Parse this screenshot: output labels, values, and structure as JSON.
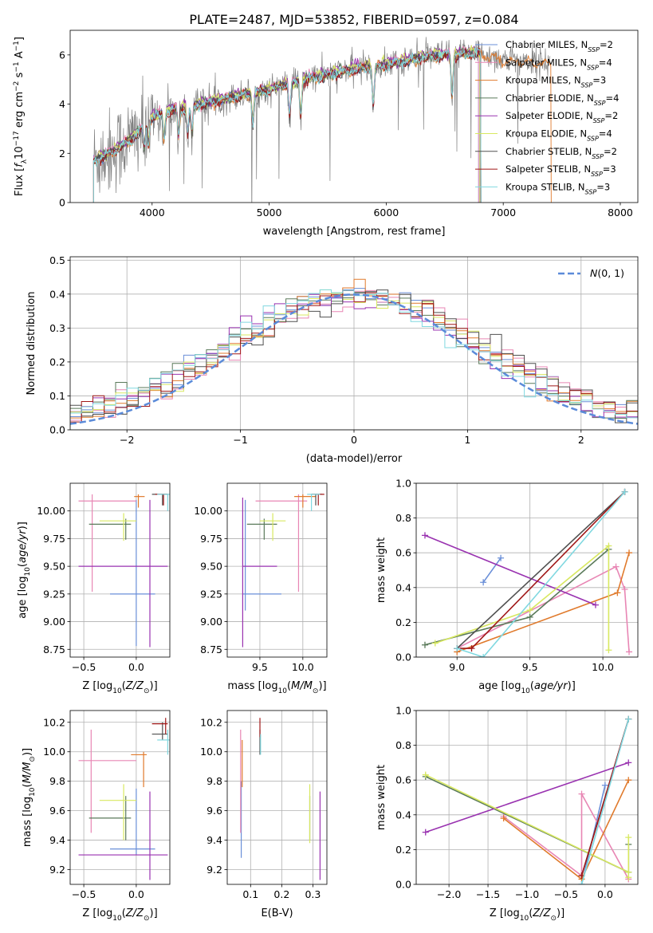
{
  "title": "PLATE=2487, MJD=53852, FIBERID=0597, z=0.084",
  "series_colors": [
    "#6a8fd8",
    "#e886b4",
    "#e07a2c",
    "#5a7a5a",
    "#9932b0",
    "#d8e860",
    "#505050",
    "#a01818",
    "#80d8e0"
  ],
  "legend_labels": [
    "Chabrier MILES, N_SSP=2",
    "Salpeter MILES, N_SSP=4",
    "Kroupa MILES, N_SSP=3",
    "Chabrier ELODIE, N_SSP=4",
    "Salpeter ELODIE, N_SSP=2",
    "Kroupa ELODIE, N_SSP=4",
    "Chabrier STELIB, N_SSP=2",
    "Salpeter STELIB, N_SSP=3",
    "Kroupa STELIB, N_SSP=3"
  ],
  "chart_data": [
    {
      "id": "spectrum",
      "type": "line",
      "xlabel": "wavelength [Angstrom, rest frame]",
      "ylabel": "Flux [f_λ 10^-17 erg cm^-2 s^-1 A^-1]",
      "xlim": [
        3300,
        8150
      ],
      "ylim": [
        0,
        7
      ],
      "xticks": [
        4000,
        5000,
        6000,
        7000,
        8000
      ],
      "yticks": [
        0,
        2,
        4,
        6
      ],
      "grid": false,
      "legend": "upper-right",
      "data_color": "#808080",
      "data_x_range": [
        3500,
        7400
      ],
      "continuum": [
        [
          3500,
          1.7
        ],
        [
          3700,
          2.2
        ],
        [
          3850,
          2.7
        ],
        [
          3950,
          3.2
        ],
        [
          4000,
          3.5
        ],
        [
          4200,
          3.8
        ],
        [
          4500,
          4.1
        ],
        [
          4800,
          4.4
        ],
        [
          5000,
          4.6
        ],
        [
          5200,
          4.9
        ],
        [
          5500,
          5.2
        ],
        [
          5800,
          5.5
        ],
        [
          6000,
          5.6
        ],
        [
          6300,
          5.9
        ],
        [
          6500,
          6.0
        ],
        [
          6800,
          6.1
        ],
        [
          7000,
          5.8
        ],
        [
          7400,
          5.7
        ]
      ],
      "absorption_lines": [
        3934,
        3969,
        4102,
        4226,
        4304,
        4340,
        4861,
        5175,
        5270,
        5890,
        6563
      ],
      "model_ranges": [
        [
          3500,
          6790
        ],
        [
          3500,
          6790
        ],
        [
          3500,
          7410
        ],
        [
          3500,
          6800
        ],
        [
          3500,
          6800
        ],
        [
          3500,
          6800
        ],
        [
          3500,
          6810
        ],
        [
          3500,
          6810
        ],
        [
          3500,
          6810
        ]
      ]
    },
    {
      "id": "residual-histogram",
      "type": "line",
      "xlabel": "(data-model)/error",
      "ylabel": "Normed distribution",
      "xlim": [
        -2.5,
        2.5
      ],
      "ylim": [
        0,
        0.51
      ],
      "xticks": [
        -2,
        -1,
        0,
        1,
        2
      ],
      "yticks": [
        0.0,
        0.1,
        0.2,
        0.3,
        0.4,
        0.5
      ],
      "grid": true,
      "legend": "upper-right",
      "legend_labels": [
        "N(0,1)"
      ],
      "reference_curve": {
        "name": "N(0,1)",
        "mean": 0,
        "sigma": 1,
        "color": "#5b8bd9",
        "style": "dashed"
      },
      "bin_width": 0.1
    },
    {
      "id": "age-vs-Z",
      "type": "scatter",
      "xlabel": "Z [log10(Z/Z_sun)]",
      "ylabel": "age [log10(age/yr)]",
      "xlim": [
        -0.63,
        0.32
      ],
      "ylim": [
        8.68,
        10.25
      ],
      "xticks": [
        -0.5,
        0.0
      ],
      "yticks": [
        8.75,
        9.0,
        9.25,
        9.5,
        9.75,
        10.0
      ],
      "grid": true,
      "errorbars": [
        {
          "s": 0,
          "x": 0.0,
          "y": 9.25,
          "xe": [
            -0.25,
            0.18
          ],
          "ye": [
            8.78,
            10.1
          ]
        },
        {
          "s": 1,
          "x": -0.42,
          "y": 10.09,
          "xe": [
            -0.55,
            0.0
          ],
          "ye": [
            9.27,
            10.15
          ]
        },
        {
          "s": 2,
          "x": 0.02,
          "y": 10.13,
          "xe": [
            -0.02,
            0.08
          ],
          "ye": [
            10.03,
            10.15
          ]
        },
        {
          "s": 3,
          "x": -0.1,
          "y": 9.88,
          "xe": [
            -0.45,
            -0.05
          ],
          "ye": [
            9.74,
            9.93
          ]
        },
        {
          "s": 4,
          "x": 0.13,
          "y": 9.5,
          "xe": [
            -0.55,
            0.3
          ],
          "ye": [
            8.77,
            10.1
          ]
        },
        {
          "s": 5,
          "x": -0.12,
          "y": 9.91,
          "xe": [
            -0.35,
            0.0
          ],
          "ye": [
            9.73,
            9.98
          ]
        },
        {
          "s": 6,
          "x": 0.25,
          "y": 10.15,
          "xe": [
            0.15,
            0.3
          ],
          "ye": [
            10.05,
            10.15
          ]
        },
        {
          "s": 7,
          "x": 0.26,
          "y": 10.15,
          "xe": [
            0.18,
            0.3
          ],
          "ye": [
            10.05,
            10.15
          ]
        },
        {
          "s": 8,
          "x": 0.3,
          "y": 10.15,
          "xe": [
            0.2,
            0.32
          ],
          "ye": [
            10.0,
            10.15
          ]
        }
      ]
    },
    {
      "id": "age-vs-mass",
      "type": "scatter",
      "xlabel": "mass [log10(M/M_sun)]",
      "ylabel": "",
      "xlim": [
        9.12,
        10.28
      ],
      "ylim": [
        8.68,
        10.25
      ],
      "xticks": [
        9.5,
        10.0
      ],
      "yticks": [
        8.75,
        9.0,
        9.25,
        9.5,
        9.75,
        10.0
      ],
      "grid": true,
      "errorbars": [
        {
          "s": 0,
          "x": 9.33,
          "y": 9.25,
          "xe": [
            9.3,
            9.75
          ],
          "ye": [
            9.1,
            10.1
          ]
        },
        {
          "s": 1,
          "x": 9.95,
          "y": 10.09,
          "xe": [
            9.45,
            10.05
          ],
          "ye": [
            9.27,
            10.15
          ]
        },
        {
          "s": 2,
          "x": 10.0,
          "y": 10.13,
          "xe": [
            9.9,
            10.15
          ],
          "ye": [
            10.03,
            10.15
          ]
        },
        {
          "s": 3,
          "x": 9.55,
          "y": 9.88,
          "xe": [
            9.35,
            9.7
          ],
          "ye": [
            9.74,
            9.93
          ]
        },
        {
          "s": 4,
          "x": 9.3,
          "y": 9.5,
          "xe": [
            9.3,
            9.7
          ],
          "ye": [
            8.77,
            10.12
          ]
        },
        {
          "s": 5,
          "x": 9.65,
          "y": 9.91,
          "xe": [
            9.5,
            9.8
          ],
          "ye": [
            9.73,
            9.98
          ]
        },
        {
          "s": 6,
          "x": 10.15,
          "y": 10.15,
          "xe": [
            10.1,
            10.22
          ],
          "ye": [
            10.05,
            10.15
          ]
        },
        {
          "s": 7,
          "x": 10.18,
          "y": 10.15,
          "xe": [
            10.1,
            10.25
          ],
          "ye": [
            10.05,
            10.15
          ]
        },
        {
          "s": 8,
          "x": 10.1,
          "y": 10.15,
          "xe": [
            10.05,
            10.2
          ],
          "ye": [
            10.0,
            10.15
          ]
        }
      ]
    },
    {
      "id": "massweight-vs-age",
      "type": "line",
      "xlabel": "age [log10(age/yr)]",
      "ylabel": "mass weight",
      "xlim": [
        8.72,
        10.24
      ],
      "ylim": [
        0,
        1
      ],
      "xticks": [
        9.0,
        9.5,
        10.0
      ],
      "yticks": [
        0.0,
        0.2,
        0.4,
        0.6,
        0.8,
        1.0
      ],
      "grid": true,
      "series": [
        {
          "s": 0,
          "x": [
            9.18,
            9.3
          ],
          "y": [
            0.43,
            0.57
          ]
        },
        {
          "s": 1,
          "x": [
            9.0,
            10.09,
            10.15,
            10.18
          ],
          "y": [
            0.05,
            0.52,
            0.39,
            0.03
          ]
        },
        {
          "s": 2,
          "x": [
            9.0,
            10.1,
            10.18
          ],
          "y": [
            0.03,
            0.37,
            0.6
          ]
        },
        {
          "s": 3,
          "x": [
            8.78,
            9.5,
            10.04
          ],
          "y": [
            0.07,
            0.23,
            0.62
          ]
        },
        {
          "s": 4,
          "x": [
            8.78,
            9.95
          ],
          "y": [
            0.7,
            0.3
          ]
        },
        {
          "s": 5,
          "x": [
            8.85,
            9.5,
            10.04,
            10.04
          ],
          "y": [
            0.08,
            0.27,
            0.64,
            0.04
          ]
        },
        {
          "s": 6,
          "x": [
            9.0,
            10.15
          ],
          "y": [
            0.05,
            0.95
          ]
        },
        {
          "s": 7,
          "x": [
            9.0,
            9.1,
            10.15
          ],
          "y": [
            0.05,
            0.05,
            0.95
          ]
        },
        {
          "s": 8,
          "x": [
            9.0,
            9.18,
            10.15
          ],
          "y": [
            0.05,
            0.0,
            0.95
          ]
        }
      ]
    },
    {
      "id": "mass-vs-Z",
      "type": "scatter",
      "xlabel": "Z [log10(Z/Z_sun)]",
      "ylabel": "mass [log10(M/M_sun)]",
      "xlim": [
        -0.63,
        0.32
      ],
      "ylim": [
        9.1,
        10.28
      ],
      "xticks": [
        -0.5,
        0.0
      ],
      "yticks": [
        9.2,
        9.4,
        9.6,
        9.8,
        10.0,
        10.2
      ],
      "grid": true,
      "errorbars": [
        {
          "s": 0,
          "x": 0.0,
          "y": 9.34,
          "xe": [
            -0.25,
            0.18
          ],
          "ye": [
            9.3,
            9.75
          ]
        },
        {
          "s": 1,
          "x": -0.43,
          "y": 9.94,
          "xe": [
            -0.55,
            0.0
          ],
          "ye": [
            9.45,
            10.15
          ]
        },
        {
          "s": 2,
          "x": 0.07,
          "y": 9.98,
          "xe": [
            -0.05,
            0.1
          ],
          "ye": [
            9.76,
            10.0
          ]
        },
        {
          "s": 3,
          "x": -0.1,
          "y": 9.55,
          "xe": [
            -0.45,
            -0.05
          ],
          "ye": [
            9.4,
            9.7
          ]
        },
        {
          "s": 4,
          "x": 0.13,
          "y": 9.3,
          "xe": [
            -0.55,
            0.3
          ],
          "ye": [
            9.13,
            9.73
          ]
        },
        {
          "s": 5,
          "x": -0.12,
          "y": 9.67,
          "xe": [
            -0.35,
            0.0
          ],
          "ye": [
            9.4,
            9.78
          ]
        },
        {
          "s": 6,
          "x": 0.25,
          "y": 10.12,
          "xe": [
            0.15,
            0.3
          ],
          "ye": [
            10.08,
            10.2
          ]
        },
        {
          "s": 7,
          "x": 0.28,
          "y": 10.19,
          "xe": [
            0.15,
            0.3
          ],
          "ye": [
            10.12,
            10.23
          ]
        },
        {
          "s": 8,
          "x": 0.3,
          "y": 10.08,
          "xe": [
            0.2,
            0.32
          ],
          "ye": [
            9.98,
            10.15
          ]
        }
      ]
    },
    {
      "id": "mass-vs-EBV",
      "type": "scatter",
      "xlabel": "E(B-V)",
      "ylabel": "",
      "xlim": [
        0.025,
        0.345
      ],
      "ylim": [
        9.1,
        10.28
      ],
      "xticks": [
        0.1,
        0.2,
        0.3
      ],
      "yticks": [
        9.2,
        9.4,
        9.6,
        9.8,
        10.0,
        10.2
      ],
      "grid": true,
      "vbars": [
        {
          "s": 0,
          "x": 0.07,
          "ye": [
            9.28,
            9.8
          ]
        },
        {
          "s": 1,
          "x": 0.068,
          "ye": [
            9.45,
            10.15
          ]
        },
        {
          "s": 2,
          "x": 0.073,
          "ye": [
            9.76,
            10.08
          ]
        },
        {
          "s": 3,
          "x": 0.29,
          "ye": [
            9.4,
            9.7
          ]
        },
        {
          "s": 4,
          "x": 0.323,
          "ye": [
            9.13,
            9.73
          ]
        },
        {
          "s": 5,
          "x": 0.29,
          "ye": [
            9.38,
            9.78
          ]
        },
        {
          "s": 6,
          "x": 0.13,
          "ye": [
            9.98,
            10.15
          ]
        },
        {
          "s": 7,
          "x": 0.13,
          "ye": [
            10.1,
            10.23
          ]
        },
        {
          "s": 8,
          "x": 0.132,
          "ye": [
            9.98,
            10.12
          ]
        }
      ]
    },
    {
      "id": "massweight-vs-Z",
      "type": "line",
      "xlabel": "Z [log10(Z/Z_sun)]",
      "ylabel": "mass weight",
      "xlim": [
        -2.42,
        0.42
      ],
      "ylim": [
        0,
        1
      ],
      "xticks": [
        -2.0,
        -1.5,
        -1.0,
        -0.5,
        0.0
      ],
      "yticks": [
        0.0,
        0.2,
        0.4,
        0.6,
        0.8,
        1.0
      ],
      "grid": true,
      "series": [
        {
          "s": 0,
          "x": [
            -0.3,
            0.0
          ],
          "y": [
            0.0,
            0.57
          ]
        },
        {
          "s": 1,
          "x": [
            -1.3,
            -0.3,
            -0.3,
            0.3
          ],
          "y": [
            0.39,
            0.05,
            0.52,
            0.03
          ]
        },
        {
          "s": 2,
          "x": [
            -1.3,
            -0.3,
            0.3
          ],
          "y": [
            0.38,
            0.03,
            0.6
          ]
        },
        {
          "s": 3,
          "x": [
            -2.3,
            0.3,
            0.3
          ],
          "y": [
            0.62,
            0.07,
            0.23
          ]
        },
        {
          "s": 4,
          "x": [
            -2.3,
            0.3
          ],
          "y": [
            0.3,
            0.7
          ]
        },
        {
          "s": 5,
          "x": [
            -2.3,
            0.3,
            0.3,
            0.3
          ],
          "y": [
            0.63,
            0.07,
            0.27,
            0.04
          ]
        },
        {
          "s": 6,
          "x": [
            -0.3,
            0.3
          ],
          "y": [
            0.05,
            0.95
          ]
        },
        {
          "s": 7,
          "x": [
            -0.3,
            0.3
          ],
          "y": [
            0.05,
            0.95
          ]
        },
        {
          "s": 8,
          "x": [
            -0.3,
            0.3
          ],
          "y": [
            0.0,
            0.95
          ]
        }
      ]
    }
  ]
}
